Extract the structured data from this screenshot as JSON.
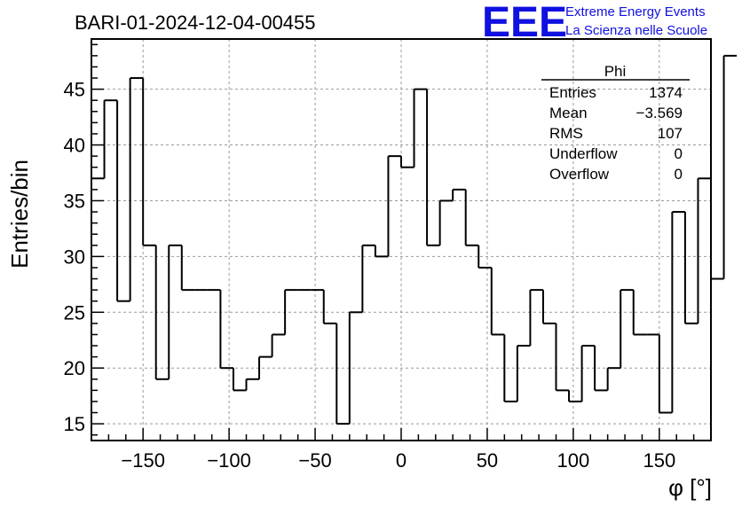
{
  "header": {
    "title": "BARI-01-2024-12-04-00455",
    "logo_text": "EEE",
    "logo_line1": "Extreme Energy Events",
    "logo_line2": "La Scienza nelle Scuole"
  },
  "stats_box": {
    "name": "Phi",
    "rows": [
      {
        "label": "Entries",
        "value": "1374"
      },
      {
        "label": "Mean",
        "value": "−3.569"
      },
      {
        "label": "RMS",
        "value": "107"
      },
      {
        "label": "Underflow",
        "value": "0"
      },
      {
        "label": "Overflow",
        "value": "0"
      }
    ]
  },
  "chart_data": {
    "type": "bar",
    "style": "step-histogram",
    "title": "BARI-01-2024-12-04-00455",
    "xlabel": "φ [°]",
    "ylabel": "Entries/bin",
    "xlim": [
      -180,
      180
    ],
    "ylim": [
      13.5,
      49.5
    ],
    "bin_width": 7.5,
    "grid": true,
    "xticks": [
      -150,
      -100,
      -50,
      0,
      50,
      100,
      150
    ],
    "xtick_labels": [
      "−150",
      "−100",
      "−50",
      "0",
      "50",
      "100",
      "150"
    ],
    "yticks": [
      15,
      20,
      25,
      30,
      35,
      40,
      45
    ],
    "ytick_labels": [
      "15",
      "20",
      "25",
      "30",
      "35",
      "40",
      "45"
    ],
    "bin_edges_start": -180,
    "values": [
      37,
      44,
      26,
      46,
      31,
      19,
      31,
      27,
      27,
      27,
      20,
      18,
      19,
      21,
      23,
      27,
      27,
      27,
      24,
      15,
      25,
      31,
      30,
      39,
      38,
      45,
      31,
      35,
      36,
      31,
      29,
      23,
      17,
      22,
      27,
      24,
      18,
      17,
      22,
      18,
      20,
      27,
      23,
      23,
      16,
      34,
      24,
      37,
      28,
      48
    ]
  }
}
